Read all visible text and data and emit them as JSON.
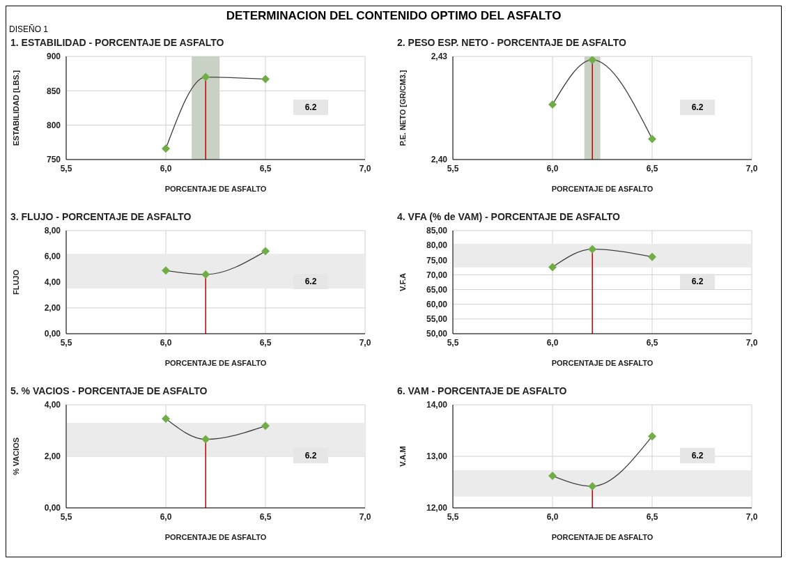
{
  "chart_data": [
    {
      "type": "other",
      "title": "DETERMINACION DEL CONTENIDO OPTIMO DEL ASFALTO",
      "subtitle": "DISEÑO 1"
    },
    {
      "type": "line",
      "title": "1. ESTABILIDAD  - PORCENTAJE DE ASFALTO",
      "xlabel": "PORCENTAJE DE ASFALTO",
      "ylabel": "ESTABILIDAD [LBS.]",
      "x": [
        6.0,
        6.2,
        6.5
      ],
      "series": [
        {
          "color": "#404040",
          "colors": [
            "#70ad47",
            "#70ad47",
            "#70ad47"
          ],
          "values": [
            766,
            870,
            867
          ]
        }
      ],
      "xlim": [
        5.5,
        7.0
      ],
      "xticks": [
        {
          "value": 5.5,
          "label": "5,5"
        },
        {
          "value": 6.0,
          "label": "6,0"
        },
        {
          "value": 6.5,
          "label": "6,5"
        },
        {
          "value": 7.0,
          "label": "7,0"
        }
      ],
      "ylim": [
        750,
        900
      ],
      "yticks": [
        750,
        800,
        850,
        900
      ],
      "grid": true,
      "marker": "diamond",
      "ref_lines": [
        {
          "axis": "x",
          "value": 6.2,
          "color": "#c00000"
        }
      ],
      "bands": [
        {
          "axis": "x",
          "from": 6.13,
          "to": 6.27,
          "color": "#c9d1c4"
        }
      ],
      "annotations": [
        "6.2"
      ]
    },
    {
      "type": "line",
      "title": "2. PESO ESP. NETO  - PORCENTAJE DE ASFALTO",
      "xlabel": "PORCENTAJE DE ASFALTO",
      "ylabel": "P.E. NETO [GR/CM3.]",
      "x": [
        6.0,
        6.2,
        6.5
      ],
      "series": [
        {
          "color": "#404040",
          "colors": [
            "#70ad47",
            "#70ad47",
            "#70ad47"
          ],
          "values": [
            2.416,
            2.429,
            2.406
          ]
        }
      ],
      "xlim": [
        5.5,
        7.0
      ],
      "xticks": [
        {
          "value": 5.5,
          "label": "5,5"
        },
        {
          "value": 6.0,
          "label": "6,0"
        },
        {
          "value": 6.5,
          "label": "6,5"
        },
        {
          "value": 7.0,
          "label": "7,0"
        }
      ],
      "ylim": [
        2.4,
        2.43
      ],
      "yticks": [
        {
          "value": 2.4,
          "label": "2,40"
        },
        {
          "value": 2.43,
          "label": "2,43"
        }
      ],
      "grid": true,
      "marker": "diamond",
      "ref_lines": [
        {
          "axis": "x",
          "value": 6.2,
          "color": "#c00000"
        }
      ],
      "bands": [
        {
          "axis": "x",
          "from": 6.16,
          "to": 6.24,
          "color": "#c9d1c4"
        }
      ],
      "annotations": [
        "6.2"
      ]
    },
    {
      "type": "line",
      "title": "3. FLUJO  - PORCENTAJE DE ASFALTO",
      "xlabel": "PORCENTAJE DE ASFALTO",
      "ylabel": "FLUJO",
      "x": [
        6.0,
        6.2,
        6.5
      ],
      "series": [
        {
          "color": "#404040",
          "colors": [
            "#70ad47",
            "#70ad47",
            "#70ad47"
          ],
          "values": [
            4.9,
            4.6,
            6.4
          ]
        }
      ],
      "xlim": [
        5.5,
        7.0
      ],
      "xticks": [
        {
          "value": 5.5,
          "label": "5,5"
        },
        {
          "value": 6.0,
          "label": "6,0"
        },
        {
          "value": 6.5,
          "label": "6,5"
        },
        {
          "value": 7.0,
          "label": "7,0"
        }
      ],
      "ylim": [
        0,
        8
      ],
      "yticks": [
        {
          "value": 0,
          "label": "0,00"
        },
        {
          "value": 2,
          "label": "2,00"
        },
        {
          "value": 4,
          "label": "4,00"
        },
        {
          "value": 6,
          "label": "6,00"
        },
        {
          "value": 8,
          "label": "8,00"
        }
      ],
      "grid": true,
      "marker": "diamond",
      "ref_lines": [
        {
          "axis": "x",
          "value": 6.2,
          "color": "#c00000"
        }
      ],
      "bands": [
        {
          "axis": "y",
          "from": 3.5,
          "to": 6.2,
          "color": "#ebebeb"
        }
      ],
      "annotations": [
        "6.2"
      ]
    },
    {
      "type": "line",
      "title": "4. VFA (% de VAM)  - PORCENTAJE DE ASFALTO",
      "xlabel": "PORCENTAJE DE ASFALTO",
      "ylabel": "V.F.A",
      "x": [
        6.0,
        6.2,
        6.5
      ],
      "series": [
        {
          "color": "#404040",
          "colors": [
            "#70ad47",
            "#70ad47",
            "#70ad47"
          ],
          "values": [
            72.6,
            78.7,
            76.1
          ]
        }
      ],
      "xlim": [
        5.5,
        7.0
      ],
      "xticks": [
        {
          "value": 5.5,
          "label": "5,5"
        },
        {
          "value": 6.0,
          "label": "6,0"
        },
        {
          "value": 6.5,
          "label": "6,5"
        },
        {
          "value": 7.0,
          "label": "7,0"
        }
      ],
      "ylim": [
        50,
        85
      ],
      "yticks": [
        {
          "value": 50,
          "label": "50,00"
        },
        {
          "value": 55,
          "label": "55,00"
        },
        {
          "value": 60,
          "label": "60,00"
        },
        {
          "value": 65,
          "label": "65,00"
        },
        {
          "value": 70,
          "label": "70,00"
        },
        {
          "value": 75,
          "label": "75,00"
        },
        {
          "value": 80,
          "label": "80,00"
        },
        {
          "value": 85,
          "label": "85,00"
        }
      ],
      "grid": true,
      "marker": "diamond",
      "ref_lines": [
        {
          "axis": "x",
          "value": 6.2,
          "color": "#c00000"
        }
      ],
      "bands": [
        {
          "axis": "y",
          "from": 72.5,
          "to": 80.5,
          "color": "#ebebeb"
        }
      ],
      "annotations": [
        "6.2"
      ]
    },
    {
      "type": "line",
      "title": "5. % VACIOS  - PORCENTAJE DE ASFALTO",
      "xlabel": "PORCENTAJE DE ASFALTO",
      "ylabel": "% VACIOS",
      "x": [
        6.0,
        6.2,
        6.5
      ],
      "series": [
        {
          "color": "#404040",
          "colors": [
            "#70ad47",
            "#70ad47",
            "#70ad47"
          ],
          "values": [
            3.46,
            2.66,
            3.18
          ]
        }
      ],
      "xlim": [
        5.5,
        7.0
      ],
      "xticks": [
        {
          "value": 5.5,
          "label": "5,5"
        },
        {
          "value": 6.0,
          "label": "6,0"
        },
        {
          "value": 6.5,
          "label": "6,5"
        },
        {
          "value": 7.0,
          "label": "7,0"
        }
      ],
      "ylim": [
        0,
        4
      ],
      "yticks": [
        {
          "value": 0,
          "label": "0,00"
        },
        {
          "value": 2,
          "label": "2,00"
        },
        {
          "value": 4,
          "label": "4,00"
        }
      ],
      "grid": true,
      "marker": "diamond",
      "ref_lines": [
        {
          "axis": "x",
          "value": 6.2,
          "color": "#c00000"
        }
      ],
      "bands": [
        {
          "axis": "y",
          "from": 2.0,
          "to": 3.3,
          "color": "#ebebeb"
        }
      ],
      "annotations": [
        "6.2"
      ]
    },
    {
      "type": "line",
      "title": "6. VAM - PORCENTAJE DE ASFALTO",
      "xlabel": "PORCENTAJE DE ASFALTO",
      "ylabel": "V.A.M",
      "x": [
        6.0,
        6.2,
        6.5
      ],
      "series": [
        {
          "color": "#404040",
          "colors": [
            "#70ad47",
            "#70ad47",
            "#70ad47"
          ],
          "values": [
            12.62,
            12.42,
            13.39
          ]
        }
      ],
      "xlim": [
        5.5,
        7.0
      ],
      "xticks": [
        {
          "value": 5.5,
          "label": "5,5"
        },
        {
          "value": 6.0,
          "label": "6,0"
        },
        {
          "value": 6.5,
          "label": "6,5"
        },
        {
          "value": 7.0,
          "label": "7,0"
        }
      ],
      "ylim": [
        12,
        14
      ],
      "yticks": [
        {
          "value": 12,
          "label": "12,00"
        },
        {
          "value": 13,
          "label": "13,00"
        },
        {
          "value": 14,
          "label": "14,00"
        }
      ],
      "grid": true,
      "marker": "diamond",
      "ref_lines": [
        {
          "axis": "x",
          "value": 6.2,
          "color": "#c00000"
        }
      ],
      "bands": [
        {
          "axis": "y",
          "from": 12.22,
          "to": 12.73,
          "color": "#ebebeb"
        }
      ],
      "annotations": [
        "6.2"
      ]
    }
  ]
}
